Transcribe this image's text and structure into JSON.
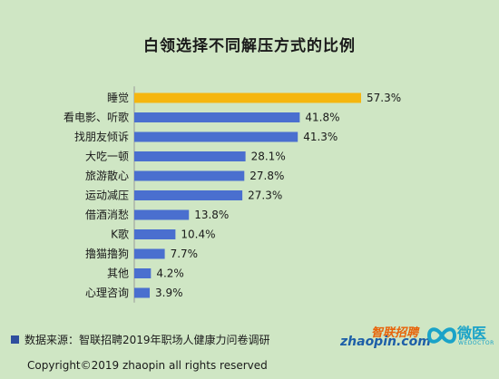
{
  "page": {
    "title": "白领选择不同解压方式的比例",
    "source": "数据来源：智联招聘2019年职场人健康力问卷调研",
    "copyright": "Copyright©2019 zhaopin all rights reserved"
  },
  "logos": {
    "zhaopin_cn": "智联招聘",
    "zhaopin_en": "zhaopin.com",
    "weiyi_cn": "微医",
    "weiyi_en": "WEDOCTOR"
  },
  "colors": {
    "background": "#cfe6c4",
    "highlight": "#f5b60f",
    "bar": "#4a6fcf"
  },
  "chart_data": {
    "type": "bar",
    "orientation": "horizontal",
    "title": "白领选择不同解压方式的比例",
    "categories": [
      "睡觉",
      "看电影、听歌",
      "找朋友倾诉",
      "大吃一顿",
      "旅游散心",
      "运动减压",
      "借酒消愁",
      "K歌",
      "撸猫撸狗",
      "其他",
      "心理咨询"
    ],
    "values": [
      57.3,
      41.8,
      41.3,
      28.1,
      27.8,
      27.3,
      13.8,
      10.4,
      7.7,
      4.2,
      3.9
    ],
    "value_labels": [
      "57.3%",
      "41.8%",
      "41.3%",
      "28.1%",
      "27.8%",
      "27.3%",
      "13.8%",
      "10.4%",
      "7.7%",
      "4.2%",
      "3.9%"
    ],
    "unit": "%",
    "xlim": [
      0,
      57.3
    ],
    "grid": false,
    "legend": "none",
    "highlight_index": 0
  }
}
